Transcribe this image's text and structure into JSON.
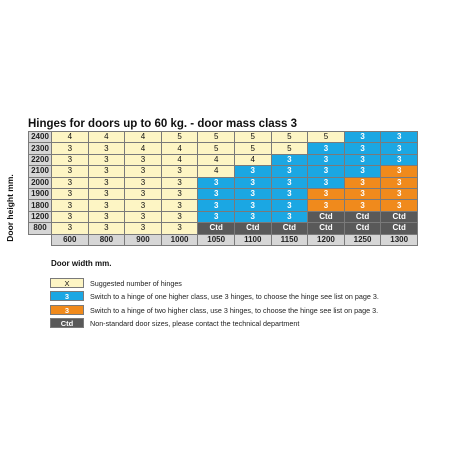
{
  "title": "Hinges for doors up to 60 kg. - door mass class 3",
  "y_axis_label": "Door height mm.",
  "x_axis_label": "Door width mm.",
  "colors": {
    "suggested": "#fdf5c4",
    "one_higher": "#1ba7e3",
    "two_higher": "#f08a1c",
    "non_standard": "#595959",
    "header": "#d6d6d6"
  },
  "table": {
    "widths": [
      "600",
      "800",
      "900",
      "1000",
      "1050",
      "1100",
      "1150",
      "1200",
      "1250",
      "1300"
    ],
    "rows": [
      {
        "height": "2400",
        "cells": [
          {
            "v": "4",
            "c": "y"
          },
          {
            "v": "4",
            "c": "y"
          },
          {
            "v": "4",
            "c": "y"
          },
          {
            "v": "5",
            "c": "y"
          },
          {
            "v": "5",
            "c": "y"
          },
          {
            "v": "5",
            "c": "y"
          },
          {
            "v": "5",
            "c": "y"
          },
          {
            "v": "5",
            "c": "y"
          },
          {
            "v": "3",
            "c": "b"
          },
          {
            "v": "3",
            "c": "b"
          }
        ]
      },
      {
        "height": "2300",
        "cells": [
          {
            "v": "3",
            "c": "y"
          },
          {
            "v": "3",
            "c": "y"
          },
          {
            "v": "4",
            "c": "y"
          },
          {
            "v": "4",
            "c": "y"
          },
          {
            "v": "5",
            "c": "y"
          },
          {
            "v": "5",
            "c": "y"
          },
          {
            "v": "5",
            "c": "y"
          },
          {
            "v": "3",
            "c": "b"
          },
          {
            "v": "3",
            "c": "b"
          },
          {
            "v": "3",
            "c": "b"
          }
        ]
      },
      {
        "height": "2200",
        "cells": [
          {
            "v": "3",
            "c": "y"
          },
          {
            "v": "3",
            "c": "y"
          },
          {
            "v": "3",
            "c": "y"
          },
          {
            "v": "4",
            "c": "y"
          },
          {
            "v": "4",
            "c": "y"
          },
          {
            "v": "4",
            "c": "y"
          },
          {
            "v": "3",
            "c": "b"
          },
          {
            "v": "3",
            "c": "b"
          },
          {
            "v": "3",
            "c": "b"
          },
          {
            "v": "3",
            "c": "b"
          }
        ]
      },
      {
        "height": "2100",
        "cells": [
          {
            "v": "3",
            "c": "y"
          },
          {
            "v": "3",
            "c": "y"
          },
          {
            "v": "3",
            "c": "y"
          },
          {
            "v": "3",
            "c": "y"
          },
          {
            "v": "4",
            "c": "y"
          },
          {
            "v": "3",
            "c": "b"
          },
          {
            "v": "3",
            "c": "b"
          },
          {
            "v": "3",
            "c": "b"
          },
          {
            "v": "3",
            "c": "b"
          },
          {
            "v": "3",
            "c": "o"
          }
        ]
      },
      {
        "height": "2000",
        "cells": [
          {
            "v": "3",
            "c": "y"
          },
          {
            "v": "3",
            "c": "y"
          },
          {
            "v": "3",
            "c": "y"
          },
          {
            "v": "3",
            "c": "y"
          },
          {
            "v": "3",
            "c": "b"
          },
          {
            "v": "3",
            "c": "b"
          },
          {
            "v": "3",
            "c": "b"
          },
          {
            "v": "3",
            "c": "b"
          },
          {
            "v": "3",
            "c": "o"
          },
          {
            "v": "3",
            "c": "o"
          }
        ]
      },
      {
        "height": "1900",
        "cells": [
          {
            "v": "3",
            "c": "y"
          },
          {
            "v": "3",
            "c": "y"
          },
          {
            "v": "3",
            "c": "y"
          },
          {
            "v": "3",
            "c": "y"
          },
          {
            "v": "3",
            "c": "b"
          },
          {
            "v": "3",
            "c": "b"
          },
          {
            "v": "3",
            "c": "b"
          },
          {
            "v": "3",
            "c": "o"
          },
          {
            "v": "3",
            "c": "o"
          },
          {
            "v": "3",
            "c": "o"
          }
        ]
      },
      {
        "height": "1800",
        "cells": [
          {
            "v": "3",
            "c": "y"
          },
          {
            "v": "3",
            "c": "y"
          },
          {
            "v": "3",
            "c": "y"
          },
          {
            "v": "3",
            "c": "y"
          },
          {
            "v": "3",
            "c": "b"
          },
          {
            "v": "3",
            "c": "b"
          },
          {
            "v": "3",
            "c": "b"
          },
          {
            "v": "3",
            "c": "o"
          },
          {
            "v": "3",
            "c": "o"
          },
          {
            "v": "3",
            "c": "o"
          }
        ]
      },
      {
        "height": "1200",
        "cells": [
          {
            "v": "3",
            "c": "y"
          },
          {
            "v": "3",
            "c": "y"
          },
          {
            "v": "3",
            "c": "y"
          },
          {
            "v": "3",
            "c": "y"
          },
          {
            "v": "3",
            "c": "b"
          },
          {
            "v": "3",
            "c": "b"
          },
          {
            "v": "3",
            "c": "b"
          },
          {
            "v": "Ctd",
            "c": "d"
          },
          {
            "v": "Ctd",
            "c": "d"
          },
          {
            "v": "Ctd",
            "c": "d"
          }
        ]
      },
      {
        "height": "800",
        "cells": [
          {
            "v": "3",
            "c": "y"
          },
          {
            "v": "3",
            "c": "y"
          },
          {
            "v": "3",
            "c": "y"
          },
          {
            "v": "3",
            "c": "y"
          },
          {
            "v": "Ctd",
            "c": "d"
          },
          {
            "v": "Ctd",
            "c": "d"
          },
          {
            "v": "Ctd",
            "c": "d"
          },
          {
            "v": "Ctd",
            "c": "d"
          },
          {
            "v": "Ctd",
            "c": "d"
          },
          {
            "v": "Ctd",
            "c": "d"
          }
        ]
      }
    ]
  },
  "legend": [
    {
      "swatch": "X",
      "kind": "y",
      "text": "Suggested number of hinges"
    },
    {
      "swatch": "3",
      "kind": "b",
      "text": "Switch to a hinge of one higher class, use 3 hinges, to choose the hinge see list on page 3."
    },
    {
      "swatch": "3",
      "kind": "o",
      "text": "Switch to a hinge of two higher class, use 3 hinges, to choose the hinge see list on page 3."
    },
    {
      "swatch": "Ctd",
      "kind": "d",
      "text": "Non-standard door sizes, please contact the technical department"
    }
  ]
}
